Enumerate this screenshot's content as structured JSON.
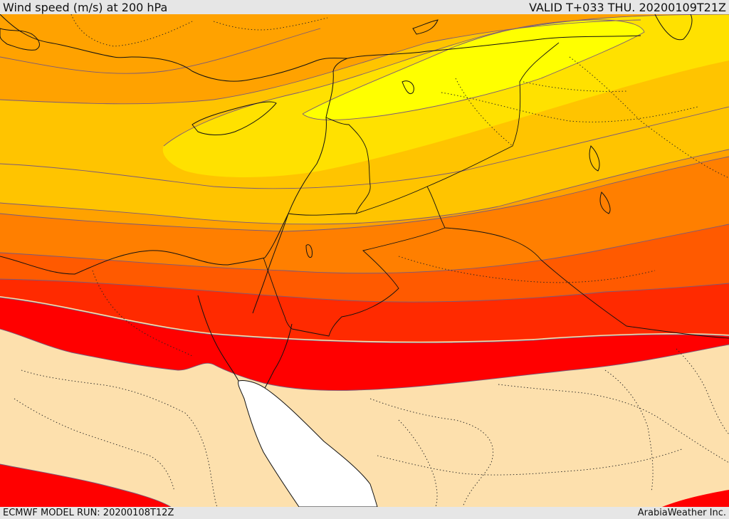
{
  "header": {
    "title": "Wind speed (m/s) at 200 hPa",
    "valid": "VALID T+033 THU. 20200109T21Z"
  },
  "footer": {
    "model_run": "ECMWF MODEL RUN: 20200108T12Z",
    "credit": "ArabiaWeather Inc."
  },
  "colors": {
    "land_below_threshold": "#fde0ad",
    "sea_unshaded": "#ffffff",
    "band_highest": "#ff0000",
    "band_high": "#ff2a00",
    "band_mid_high": "#ff5a00",
    "band_mid": "#ff7f00",
    "band_mid_low": "#ffa200",
    "band_low": "#ffc400",
    "band_lower": "#ffe100",
    "band_lowest": "#ffff00",
    "contour_line": "#7a5a7a",
    "coastline": "#111111",
    "border_dotted": "#222222"
  }
}
